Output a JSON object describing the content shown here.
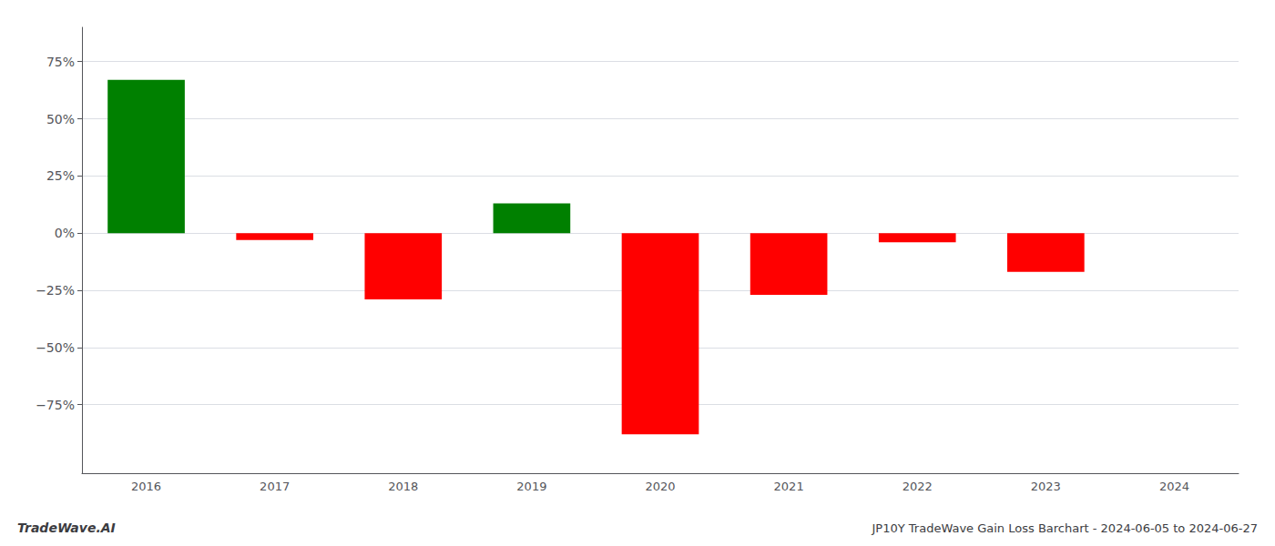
{
  "chart_data": {
    "type": "bar",
    "title": "JP10Y TradeWave Gain Loss Barchart - 2024-06-05 to 2024-06-27",
    "annotations": [
      "TradeWave.AI"
    ],
    "categories": [
      "2016",
      "2017",
      "2018",
      "2019",
      "2020",
      "2021",
      "2022",
      "2023",
      "2024"
    ],
    "values": [
      67.0,
      -3.0,
      -29.0,
      13.0,
      -88.0,
      -27.0,
      -4.0,
      -17.0,
      null
    ],
    "colors": [
      "#008000",
      "#ff0000",
      "#ff0000",
      "#008000",
      "#ff0000",
      "#ff0000",
      "#ff0000",
      "#ff0000",
      null
    ],
    "ylim": [
      -105,
      90
    ],
    "yticks": [
      {
        "value": -75,
        "label": "−75%"
      },
      {
        "value": -50,
        "label": "−50%"
      },
      {
        "value": -25,
        "label": "−25%"
      },
      {
        "value": 0,
        "label": "0%"
      },
      {
        "value": 25,
        "label": "25%"
      },
      {
        "value": 50,
        "label": "50%"
      },
      {
        "value": 75,
        "label": "75%"
      }
    ],
    "grid": true
  }
}
